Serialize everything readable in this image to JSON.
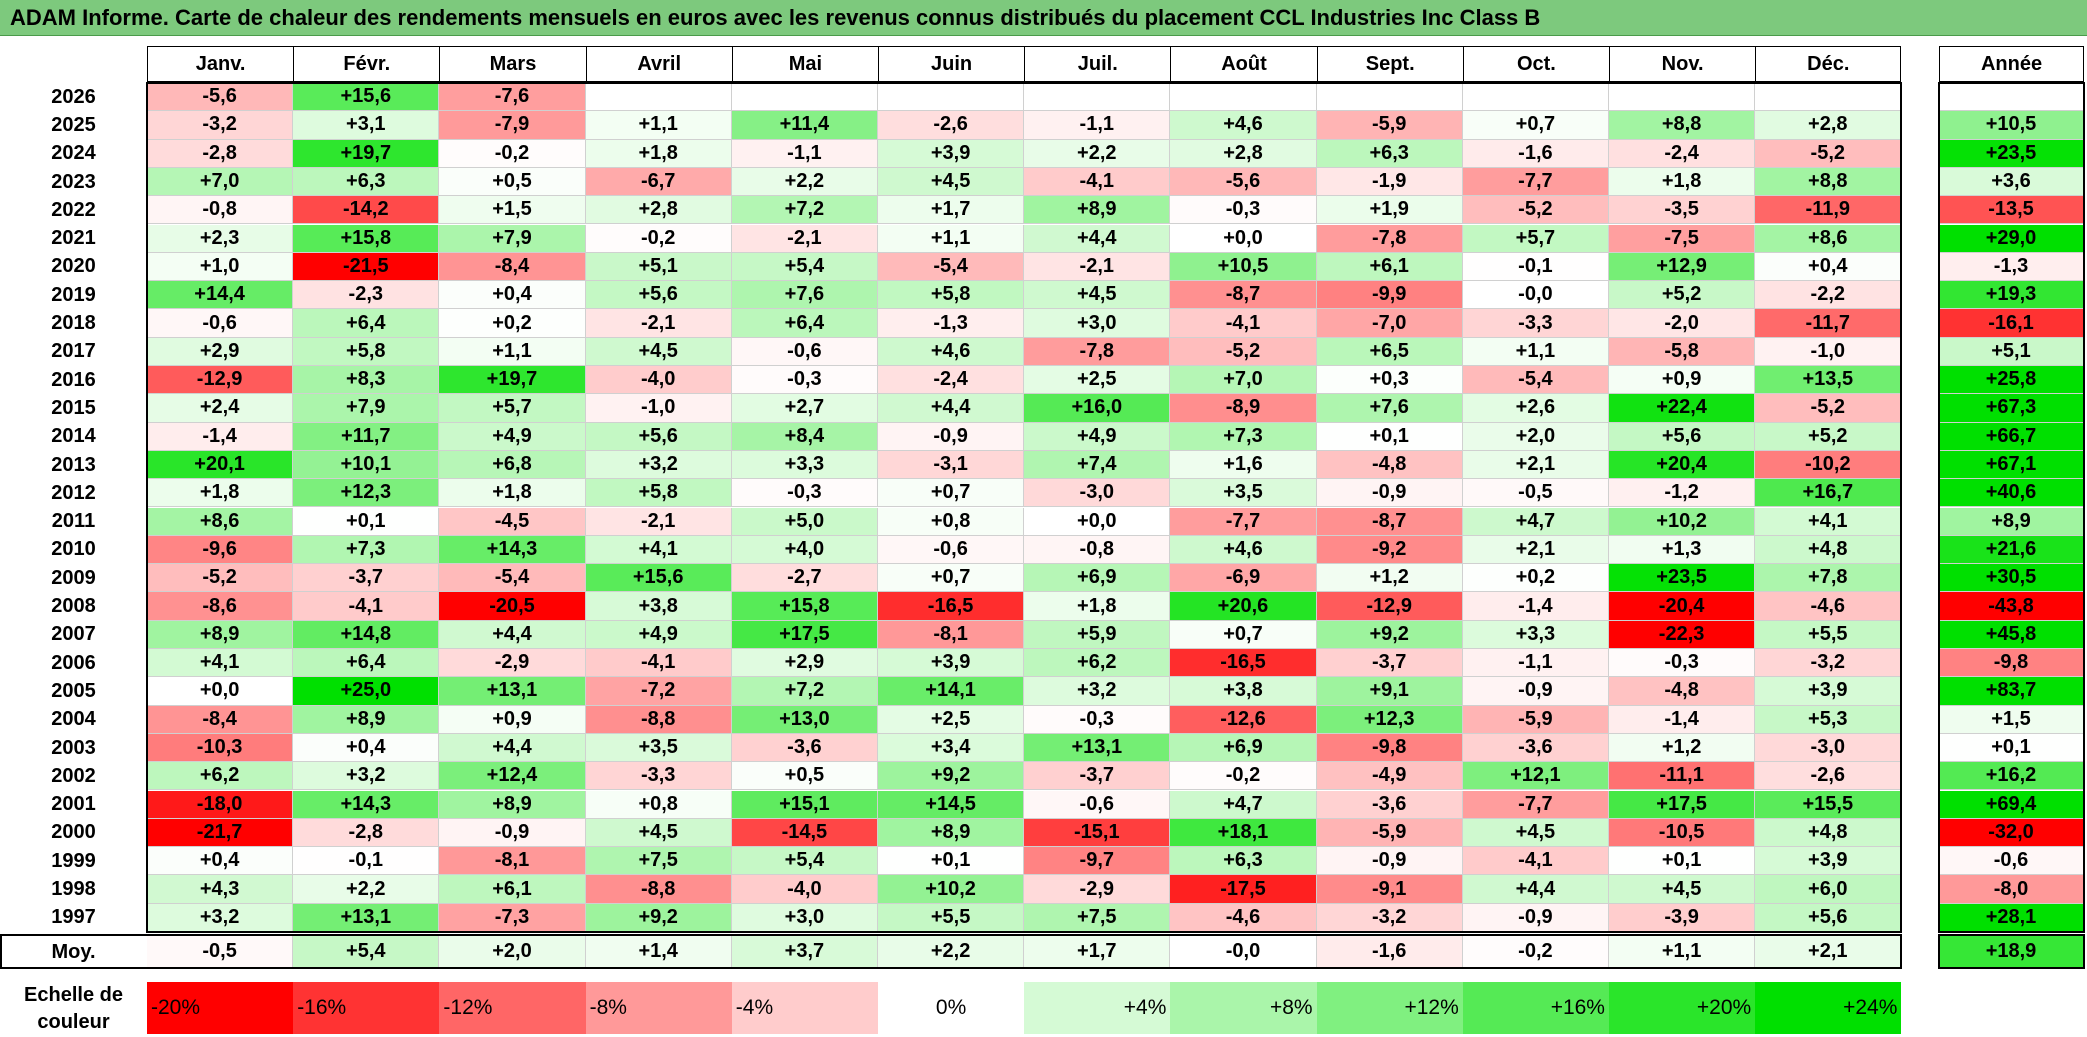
{
  "title": "ADAM Informe. Carte de chaleur des rendements mensuels en euros avec les revenus connus distribués du placement CCL Industries Inc Class B",
  "chart_data": {
    "type": "heatmap",
    "title": "ADAM Informe. Carte de chaleur des rendements mensuels en euros avec les revenus connus distribués du placement CCL Industries Inc Class B",
    "months": [
      "Janv.",
      "Févr.",
      "Mars",
      "Avril",
      "Mai",
      "Juin",
      "Juil.",
      "Août",
      "Sept.",
      "Oct.",
      "Nov.",
      "Déc."
    ],
    "year_header": "Année",
    "rows": [
      {
        "year": "2026",
        "values": [
          "-5,6",
          "+15,6",
          "-7,6",
          "",
          "",
          "",
          "",
          "",
          "",
          "",
          "",
          ""
        ],
        "total": ""
      },
      {
        "year": "2025",
        "values": [
          "-3,2",
          "+3,1",
          "-7,9",
          "+1,1",
          "+11,4",
          "-2,6",
          "-1,1",
          "+4,6",
          "-5,9",
          "+0,7",
          "+8,8",
          "+2,8"
        ],
        "total": "+10,5"
      },
      {
        "year": "2024",
        "values": [
          "-2,8",
          "+19,7",
          "-0,2",
          "+1,8",
          "-1,1",
          "+3,9",
          "+2,2",
          "+2,8",
          "+6,3",
          "-1,6",
          "-2,4",
          "-5,2"
        ],
        "total": "+23,5"
      },
      {
        "year": "2023",
        "values": [
          "+7,0",
          "+6,3",
          "+0,5",
          "-6,7",
          "+2,2",
          "+4,5",
          "-4,1",
          "-5,6",
          "-1,9",
          "-7,7",
          "+1,8",
          "+8,8"
        ],
        "total": "+3,6"
      },
      {
        "year": "2022",
        "values": [
          "-0,8",
          "-14,2",
          "+1,5",
          "+2,8",
          "+7,2",
          "+1,7",
          "+8,9",
          "-0,3",
          "+1,9",
          "-5,2",
          "-3,5",
          "-11,9"
        ],
        "total": "-13,5"
      },
      {
        "year": "2021",
        "values": [
          "+2,3",
          "+15,8",
          "+7,9",
          "-0,2",
          "-2,1",
          "+1,1",
          "+4,4",
          "+0,0",
          "-7,8",
          "+5,7",
          "-7,5",
          "+8,6"
        ],
        "total": "+29,0"
      },
      {
        "year": "2020",
        "values": [
          "+1,0",
          "-21,5",
          "-8,4",
          "+5,1",
          "+5,4",
          "-5,4",
          "-2,1",
          "+10,5",
          "+6,1",
          "-0,1",
          "+12,9",
          "+0,4"
        ],
        "total": "-1,3"
      },
      {
        "year": "2019",
        "values": [
          "+14,4",
          "-2,3",
          "+0,4",
          "+5,6",
          "+7,6",
          "+5,8",
          "+4,5",
          "-8,7",
          "-9,9",
          "-0,0",
          "+5,2",
          "-2,2"
        ],
        "total": "+19,3"
      },
      {
        "year": "2018",
        "values": [
          "-0,6",
          "+6,4",
          "+0,2",
          "-2,1",
          "+6,4",
          "-1,3",
          "+3,0",
          "-4,1",
          "-7,0",
          "-3,3",
          "-2,0",
          "-11,7"
        ],
        "total": "-16,1"
      },
      {
        "year": "2017",
        "values": [
          "+2,9",
          "+5,8",
          "+1,1",
          "+4,5",
          "-0,6",
          "+4,6",
          "-7,8",
          "-5,2",
          "+6,5",
          "+1,1",
          "-5,8",
          "-1,0"
        ],
        "total": "+5,1"
      },
      {
        "year": "2016",
        "values": [
          "-12,9",
          "+8,3",
          "+19,7",
          "-4,0",
          "-0,3",
          "-2,4",
          "+2,5",
          "+7,0",
          "+0,3",
          "-5,4",
          "+0,9",
          "+13,5"
        ],
        "total": "+25,8"
      },
      {
        "year": "2015",
        "values": [
          "+2,4",
          "+7,9",
          "+5,7",
          "-1,0",
          "+2,7",
          "+4,4",
          "+16,0",
          "-8,9",
          "+7,6",
          "+2,6",
          "+22,4",
          "-5,2"
        ],
        "total": "+67,3"
      },
      {
        "year": "2014",
        "values": [
          "-1,4",
          "+11,7",
          "+4,9",
          "+5,6",
          "+8,4",
          "-0,9",
          "+4,9",
          "+7,3",
          "+0,1",
          "+2,0",
          "+5,6",
          "+5,2"
        ],
        "total": "+66,7"
      },
      {
        "year": "2013",
        "values": [
          "+20,1",
          "+10,1",
          "+6,8",
          "+3,2",
          "+3,3",
          "-3,1",
          "+7,4",
          "+1,6",
          "-4,8",
          "+2,1",
          "+20,4",
          "-10,2"
        ],
        "total": "+67,1"
      },
      {
        "year": "2012",
        "values": [
          "+1,8",
          "+12,3",
          "+1,8",
          "+5,8",
          "-0,3",
          "+0,7",
          "-3,0",
          "+3,5",
          "-0,9",
          "-0,5",
          "-1,2",
          "+16,7"
        ],
        "total": "+40,6"
      },
      {
        "year": "2011",
        "values": [
          "+8,6",
          "+0,1",
          "-4,5",
          "-2,1",
          "+5,0",
          "+0,8",
          "+0,0",
          "-7,7",
          "-8,7",
          "+4,7",
          "+10,2",
          "+4,1"
        ],
        "total": "+8,9"
      },
      {
        "year": "2010",
        "values": [
          "-9,6",
          "+7,3",
          "+14,3",
          "+4,1",
          "+4,0",
          "-0,6",
          "-0,8",
          "+4,6",
          "-9,2",
          "+2,1",
          "+1,3",
          "+4,8"
        ],
        "total": "+21,6"
      },
      {
        "year": "2009",
        "values": [
          "-5,2",
          "-3,7",
          "-5,4",
          "+15,6",
          "-2,7",
          "+0,7",
          "+6,9",
          "-6,9",
          "+1,2",
          "+0,2",
          "+23,5",
          "+7,8"
        ],
        "total": "+30,5"
      },
      {
        "year": "2008",
        "values": [
          "-8,6",
          "-4,1",
          "-20,5",
          "+3,8",
          "+15,8",
          "-16,5",
          "+1,8",
          "+20,6",
          "-12,9",
          "-1,4",
          "-20,4",
          "-4,6"
        ],
        "total": "-43,8"
      },
      {
        "year": "2007",
        "values": [
          "+8,9",
          "+14,8",
          "+4,4",
          "+4,9",
          "+17,5",
          "-8,1",
          "+5,9",
          "+0,7",
          "+9,2",
          "+3,3",
          "-22,3",
          "+5,5"
        ],
        "total": "+45,8"
      },
      {
        "year": "2006",
        "values": [
          "+4,1",
          "+6,4",
          "-2,9",
          "-4,1",
          "+2,9",
          "+3,9",
          "+6,2",
          "-16,5",
          "-3,7",
          "-1,1",
          "-0,3",
          "-3,2"
        ],
        "total": "-9,8"
      },
      {
        "year": "2005",
        "values": [
          "+0,0",
          "+25,0",
          "+13,1",
          "-7,2",
          "+7,2",
          "+14,1",
          "+3,2",
          "+3,8",
          "+9,1",
          "-0,9",
          "-4,8",
          "+3,9"
        ],
        "total": "+83,7"
      },
      {
        "year": "2004",
        "values": [
          "-8,4",
          "+8,9",
          "+0,9",
          "-8,8",
          "+13,0",
          "+2,5",
          "-0,3",
          "-12,6",
          "+12,3",
          "-5,9",
          "-1,4",
          "+5,3"
        ],
        "total": "+1,5"
      },
      {
        "year": "2003",
        "values": [
          "-10,3",
          "+0,4",
          "+4,4",
          "+3,5",
          "-3,6",
          "+3,4",
          "+13,1",
          "+6,9",
          "-9,8",
          "-3,6",
          "+1,2",
          "-3,0"
        ],
        "total": "+0,1"
      },
      {
        "year": "2002",
        "values": [
          "+6,2",
          "+3,2",
          "+12,4",
          "-3,3",
          "+0,5",
          "+9,2",
          "-3,7",
          "-0,2",
          "-4,9",
          "+12,1",
          "-11,1",
          "-2,6"
        ],
        "total": "+16,2"
      },
      {
        "year": "2001",
        "values": [
          "-18,0",
          "+14,3",
          "+8,9",
          "+0,8",
          "+15,1",
          "+14,5",
          "-0,6",
          "+4,7",
          "-3,6",
          "-7,7",
          "+17,5",
          "+15,5"
        ],
        "total": "+69,4"
      },
      {
        "year": "2000",
        "values": [
          "-21,7",
          "-2,8",
          "-0,9",
          "+4,5",
          "-14,5",
          "+8,9",
          "-15,1",
          "+18,1",
          "-5,9",
          "+4,5",
          "-10,5",
          "+4,8"
        ],
        "total": "-32,0"
      },
      {
        "year": "1999",
        "values": [
          "+0,4",
          "-0,1",
          "-8,1",
          "+7,5",
          "+5,4",
          "+0,1",
          "-9,7",
          "+6,3",
          "-0,9",
          "-4,1",
          "+0,1",
          "+3,9"
        ],
        "total": "-0,6"
      },
      {
        "year": "1998",
        "values": [
          "+4,3",
          "+2,2",
          "+6,1",
          "-8,8",
          "-4,0",
          "+10,2",
          "-2,9",
          "-17,5",
          "-9,1",
          "+4,4",
          "+4,5",
          "+6,0"
        ],
        "total": "-8,0"
      },
      {
        "year": "1997",
        "values": [
          "+3,2",
          "+13,1",
          "-7,3",
          "+9,2",
          "+3,0",
          "+5,5",
          "+7,5",
          "-4,6",
          "-3,2",
          "-0,9",
          "-3,9",
          "+5,6"
        ],
        "total": "+28,1"
      }
    ],
    "average": {
      "label": "Moy.",
      "values": [
        "-0,5",
        "+5,4",
        "+2,0",
        "+1,4",
        "+3,7",
        "+2,2",
        "+1,7",
        "-0,0",
        "-1,6",
        "-0,2",
        "+1,1",
        "+2,1"
      ],
      "total": "+18,9"
    },
    "legend": {
      "label": "Echelle de couleur",
      "items": [
        {
          "label": "-20%",
          "value": -20
        },
        {
          "label": "-16%",
          "value": -16
        },
        {
          "label": "-12%",
          "value": -12
        },
        {
          "label": "-8%",
          "value": -8
        },
        {
          "label": "-4%",
          "value": -4
        },
        {
          "label": "0%",
          "value": 0
        },
        {
          "label": "+4%",
          "value": 4
        },
        {
          "label": "+8%",
          "value": 8
        },
        {
          "label": "+12%",
          "value": 12
        },
        {
          "label": "+16%",
          "value": 16
        },
        {
          "label": "+20%",
          "value": 20
        },
        {
          "label": "+24%",
          "value": 24
        }
      ]
    },
    "colors": {
      "negative_max": "#ff0000",
      "positive_max": "#00e000",
      "neutral": "#ffffff",
      "title_bar": "#7dc97d"
    }
  }
}
